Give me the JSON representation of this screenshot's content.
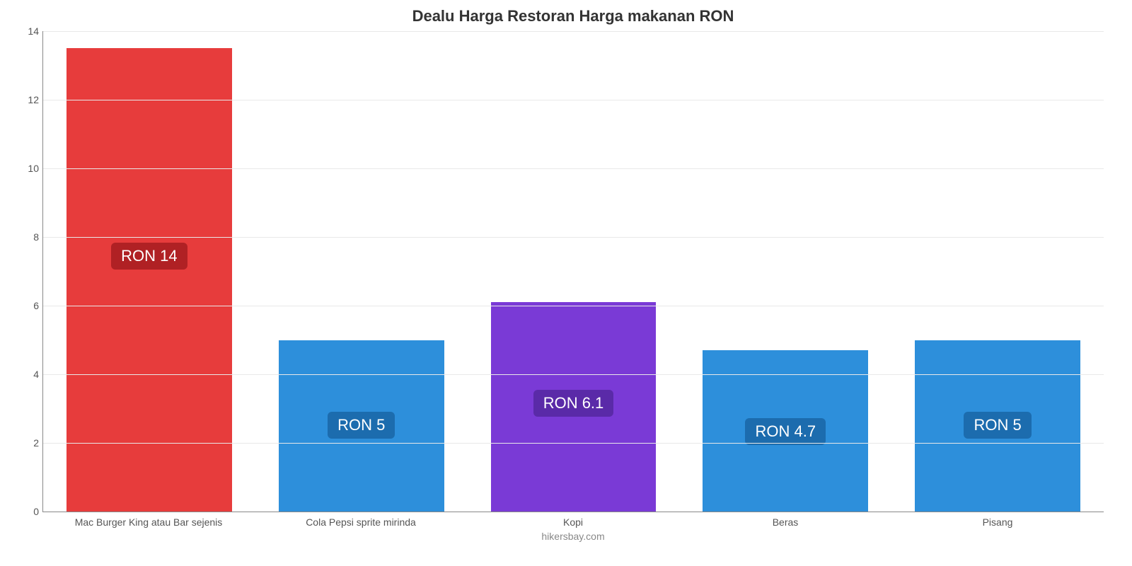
{
  "chart": {
    "type": "bar",
    "title": "Dealu Harga Restoran Harga makanan RON",
    "title_fontsize": 22,
    "title_color": "#333333",
    "background_color": "#ffffff",
    "grid_color": "#e9e9e9",
    "axis_color": "#888888",
    "ylim": [
      0,
      14
    ],
    "ytick_step": 2,
    "yticks": [
      0,
      2,
      4,
      6,
      8,
      10,
      12,
      14
    ],
    "tick_fontsize": 14,
    "tick_color": "#555555",
    "bar_width_pct": 78,
    "categories": [
      "Mac Burger King atau Bar sejenis",
      "Cola Pepsi sprite mirinda",
      "Kopi",
      "Beras",
      "Pisang"
    ],
    "values": [
      13.5,
      5.0,
      6.1,
      4.7,
      5.0
    ],
    "bar_colors": [
      "#e73c3c",
      "#2d8fdb",
      "#7a3ad6",
      "#2d8fdb",
      "#2d8fdb"
    ],
    "value_labels": [
      "RON 14",
      "RON 5",
      "RON 6.1",
      "RON 4.7",
      "RON 5"
    ],
    "value_label_bg": [
      "#b02124",
      "#1c6cae",
      "#5a2aa8",
      "#1c6cae",
      "#1c6cae"
    ],
    "value_label_fontsize": 22,
    "value_label_color": "#ffffff",
    "xlabel_fontsize": 14,
    "xlabel_color": "#555555",
    "credit": "hikersbay.com",
    "credit_color": "#888888",
    "credit_fontsize": 14
  }
}
